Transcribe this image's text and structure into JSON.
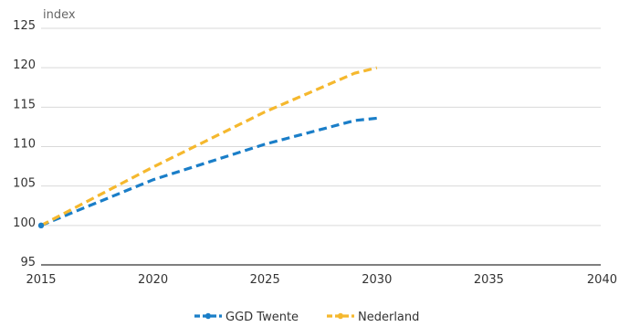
{
  "chart_data": {
    "type": "line",
    "ylabel": "index",
    "xlim": [
      2015,
      2040
    ],
    "ylim": [
      95,
      125
    ],
    "x_ticks": [
      "2015",
      "2020",
      "2025",
      "2030",
      "2035",
      "2040"
    ],
    "y_ticks": [
      "95",
      "100",
      "105",
      "110",
      "115",
      "120",
      "125"
    ],
    "grid": "horizontal",
    "legend_position": "bottom",
    "x": [
      2015,
      2020,
      2025,
      2029,
      2030
    ],
    "series": [
      {
        "name": "GGD Twente",
        "color": "#1a7ec8",
        "dash": "dashed",
        "values": [
          100,
          105.8,
          110.3,
          113.3,
          113.6
        ]
      },
      {
        "name": "Nederland",
        "color": "#f5b82e",
        "dash": "dashed",
        "values": [
          100,
          107.4,
          114.4,
          119.3,
          120.0
        ]
      }
    ]
  }
}
